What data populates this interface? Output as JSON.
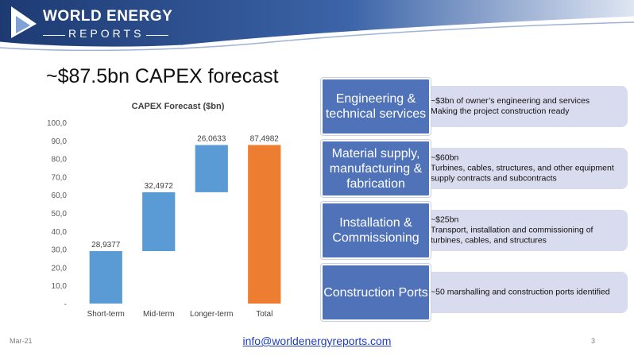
{
  "brand": {
    "line1": "WORLD ENERGY",
    "line2": "REPORTS"
  },
  "title": "~$87.5bn CAPEX forecast",
  "chart_data": {
    "type": "waterfall",
    "title": "CAPEX Forecast ($bn)",
    "categories": [
      "Short-term",
      "Mid-term",
      "Longer-term",
      "Total"
    ],
    "values": [
      28.9377,
      32.4972,
      26.0633,
      87.4982
    ],
    "data_labels": [
      "28,9377",
      "32,4972",
      "26,0633",
      "87,4982"
    ],
    "y_ticks": [
      "-",
      "10,0",
      "20,0",
      "30,0",
      "40,0",
      "50,0",
      "60,0",
      "70,0",
      "80,0",
      "90,0",
      "100,0"
    ],
    "ylim": [
      0,
      100
    ],
    "grid": false,
    "colors": {
      "step": "#5b9bd5",
      "total": "#ed7d31"
    }
  },
  "rows": [
    {
      "label": "Engineering & technical services",
      "bullets": [
        "~$3bn of owner’s engineering and services",
        "Making the project construction ready"
      ]
    },
    {
      "label": "Material supply, manufacturing & fabrication",
      "bullets": [
        "~$60bn",
        "Turbines, cables, structures, and other equipment supply contracts and subcontracts"
      ]
    },
    {
      "label": "Installation & Commissioning",
      "bullets": [
        "~$25bn",
        "Transport, installation and commissioning of turbines, cables, and structures"
      ]
    },
    {
      "label": "Construction Ports",
      "bullets": [
        "~50 marshalling and construction ports identified"
      ]
    }
  ],
  "footer": {
    "date": "Mar-21",
    "email": "info@worldenergyreports.com",
    "page": "3"
  },
  "colors": {
    "banner": "#1f3f7a",
    "row_box": "#4f72b8",
    "row_desc": "#d9dbee"
  }
}
